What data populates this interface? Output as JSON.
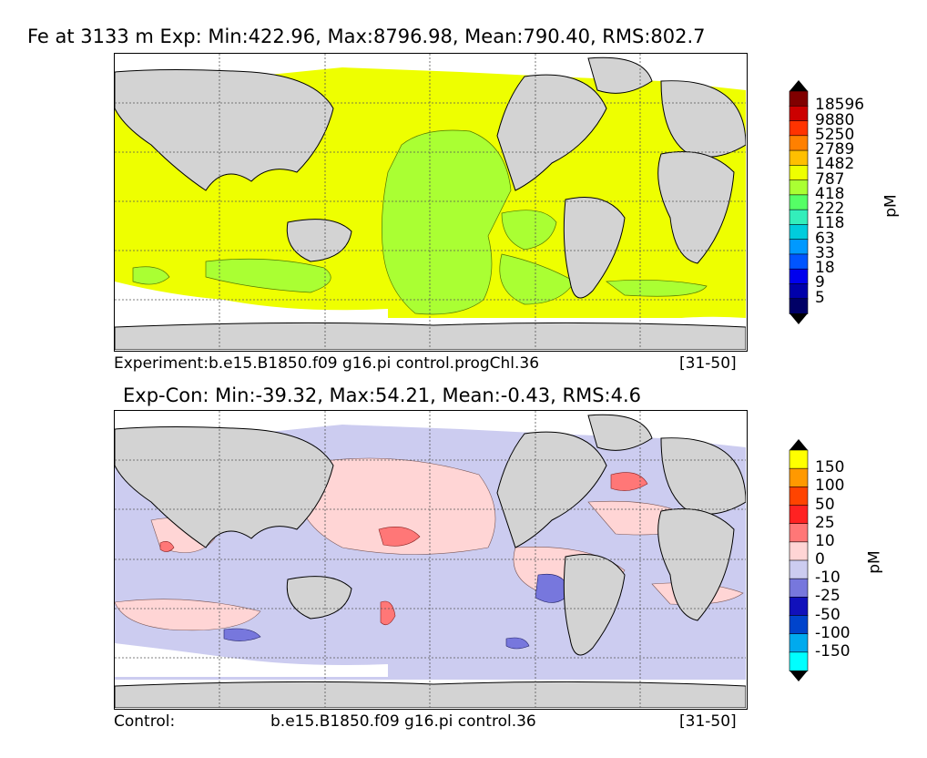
{
  "chart_data": [
    {
      "type": "heatmap",
      "title": "Fe at 3133 m Exp: Min:422.96, Max:8796.98, Mean:790.40, RMS:802.7",
      "caption_left": "Experiment:b.e15.B1850.f09 g16.pi control.progChl.36",
      "caption_right": "[31-50]",
      "colorbar": {
        "unit": "pM",
        "levels": [
          "18596",
          "9880",
          "5250",
          "2789",
          "1482",
          "787",
          "418",
          "222",
          "118",
          "63",
          "33",
          "18",
          "9",
          "5"
        ],
        "colors": [
          "#800000",
          "#cc0000",
          "#ff3300",
          "#ff8000",
          "#ffbf00",
          "#eeff00",
          "#aaff33",
          "#55ff66",
          "#33eebb",
          "#00ccdd",
          "#0099ff",
          "#0055ff",
          "#0000ee",
          "#0000aa",
          "#000066"
        ],
        "extend": "both"
      },
      "field_colors": {
        "dominant": "#eeff00",
        "secondary": "#aaff33",
        "land": "#d3d3d3",
        "nodata": "#ffffff"
      }
    },
    {
      "type": "heatmap",
      "title": "Exp-Con: Min:-39.32, Max:54.21, Mean:-0.43, RMS:4.6",
      "caption_left": "Control:",
      "caption_middle": "b.e15.B1850.f09 g16.pi control.36",
      "caption_right": "[31-50]",
      "colorbar": {
        "unit": "pM",
        "levels": [
          "150",
          "100",
          "50",
          "25",
          "10",
          "0",
          "-10",
          "-25",
          "-50",
          "-100",
          "-150"
        ],
        "colors": [
          "#ffff00",
          "#ff9900",
          "#ff4400",
          "#ff2222",
          "#ff7777",
          "#ffd5d5",
          "#ccccf0",
          "#7777dd",
          "#1111bb",
          "#0044cc",
          "#00aaee",
          "#00ffff"
        ],
        "extend": "both"
      },
      "field_colors": {
        "positive": "#ffd5d5",
        "negative": "#ccccf0",
        "strong_positive": "#ff7777",
        "strong_negative": "#7777dd",
        "land": "#d3d3d3",
        "nodata": "#ffffff"
      }
    }
  ]
}
